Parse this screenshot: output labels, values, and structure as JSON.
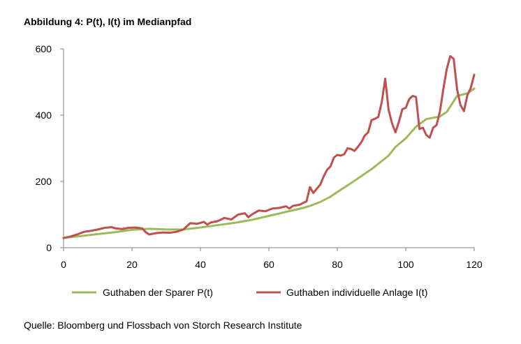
{
  "title": "Abbildung 4: P(t), I(t) im Medianpfad",
  "source": "Quelle: Bloomberg und Flossbach von Storch Research Institute",
  "colors": {
    "series_p": "#9bbb59",
    "series_i": "#c0504d",
    "axis": "#808080"
  },
  "chart_data": {
    "type": "line",
    "title": "Abbildung 4: P(t), I(t) im Medianpfad",
    "xlabel": "",
    "ylabel": "",
    "xlim": [
      0,
      120
    ],
    "ylim": [
      0,
      600
    ],
    "xticks": [
      0,
      20,
      40,
      60,
      80,
      100,
      120
    ],
    "yticks": [
      0,
      200,
      400,
      600
    ],
    "grid": false,
    "legend": "bottom",
    "series": [
      {
        "name": "Guthaben der Sparer P(t)",
        "color": "#9bbb59",
        "x": [
          0,
          5,
          10,
          15,
          20,
          25,
          30,
          35,
          40,
          45,
          50,
          55,
          60,
          65,
          70,
          72,
          75,
          78,
          80,
          85,
          90,
          95,
          97,
          100,
          103,
          106,
          110,
          112,
          115,
          118,
          120
        ],
        "y": [
          30,
          35,
          41,
          47,
          54,
          57,
          55,
          55,
          61,
          68,
          75,
          84,
          96,
          108,
          120,
          126,
          138,
          154,
          168,
          202,
          237,
          278,
          304,
          330,
          365,
          388,
          396,
          410,
          458,
          466,
          480
        ]
      },
      {
        "name": "Guthaben individuelle Anlage I(t)",
        "color": "#c0504d",
        "x": [
          0,
          2,
          4,
          6,
          8,
          10,
          12,
          14,
          15,
          17,
          19,
          21,
          23,
          24,
          25,
          27,
          29,
          31,
          33,
          35,
          37,
          39,
          41,
          42,
          43,
          45,
          47,
          49,
          51,
          53,
          54,
          55,
          57,
          59,
          61,
          63,
          65,
          66,
          67,
          69,
          71,
          72,
          73,
          74,
          75,
          76,
          77,
          78,
          79,
          80,
          81,
          82,
          83,
          84,
          85,
          86,
          87,
          88,
          89,
          90,
          91,
          92,
          93,
          94,
          95,
          96,
          97,
          98,
          99,
          100,
          101,
          102,
          103,
          104,
          105,
          106,
          107,
          108,
          109,
          110,
          111,
          112,
          113,
          114,
          115,
          116,
          117,
          118,
          119,
          120
        ],
        "y": [
          29,
          34,
          40,
          48,
          51,
          55,
          60,
          62,
          59,
          56,
          60,
          61,
          58,
          47,
          40,
          44,
          46,
          45,
          48,
          55,
          74,
          72,
          78,
          70,
          76,
          80,
          90,
          85,
          100,
          104,
          92,
          100,
          112,
          110,
          118,
          120,
          125,
          118,
          126,
          130,
          140,
          183,
          165,
          178,
          190,
          215,
          235,
          245,
          272,
          280,
          278,
          282,
          300,
          298,
          292,
          304,
          318,
          338,
          348,
          385,
          389,
          395,
          440,
          510,
          415,
          375,
          348,
          380,
          418,
          422,
          448,
          458,
          455,
          358,
          362,
          340,
          332,
          362,
          370,
          412,
          480,
          540,
          578,
          570,
          478,
          430,
          412,
          460,
          482,
          522
        ]
      }
    ]
  }
}
